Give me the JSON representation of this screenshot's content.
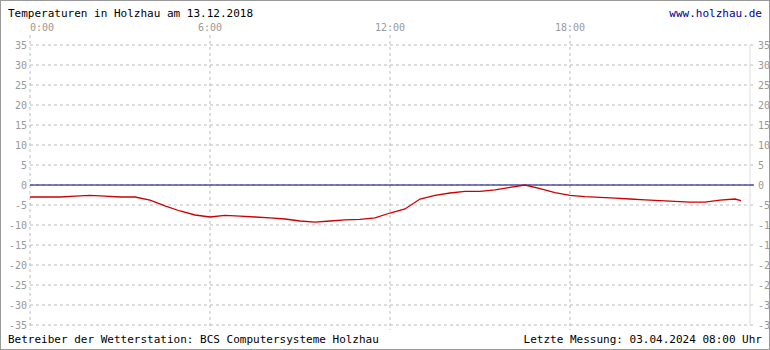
{
  "chart_data": {
    "type": "line",
    "title": "Temperaturen in Holzhau am 13.12.2018",
    "source_link": "www.holzhau.de",
    "footer_left": "Betreiber der Wetterstation: BCS Computersysteme Holzhau",
    "footer_right": "Letzte Messung: 03.04.2024 08:00 Uhr",
    "x": [
      0,
      0.5,
      1,
      1.5,
      2,
      2.5,
      3,
      3.5,
      4,
      4.5,
      5,
      5.5,
      6,
      6.5,
      7,
      7.5,
      8,
      8.5,
      9,
      9.5,
      10,
      10.5,
      11,
      11.5,
      12,
      12.5,
      13,
      13.5,
      14,
      14.5,
      15,
      15.5,
      16,
      16.5,
      17,
      17.5,
      18,
      18.5,
      19,
      19.5,
      20,
      20.5,
      21,
      21.5,
      22,
      22.5,
      23,
      23.5,
      23.7
    ],
    "values": [
      -3,
      -3,
      -3,
      -2.8,
      -2.6,
      -2.8,
      -3,
      -3,
      -3.8,
      -5.2,
      -6.5,
      -7.5,
      -8,
      -7.6,
      -7.8,
      -8,
      -8.2,
      -8.5,
      -9,
      -9.3,
      -9,
      -8.7,
      -8.6,
      -8.2,
      -7,
      -6,
      -3.5,
      -2.6,
      -2,
      -1.6,
      -1.6,
      -1.2,
      -0.6,
      0,
      -0.9,
      -1.9,
      -2.6,
      -2.9,
      -3.1,
      -3.3,
      -3.5,
      -3.7,
      -3.9,
      -4.1,
      -4.3,
      -4.3,
      -3.8,
      -3.5,
      -3.9
    ],
    "color": "#cc0000",
    "xlim": [
      0,
      24
    ],
    "xticks": [
      {
        "value": 0,
        "label": "0:00"
      },
      {
        "value": 6,
        "label": "6:00"
      },
      {
        "value": 12,
        "label": "12:00"
      },
      {
        "value": 18,
        "label": "18:00"
      }
    ],
    "ylim": [
      -35,
      35
    ],
    "yticks": [
      -35,
      -30,
      -25,
      -20,
      -15,
      -10,
      -5,
      0,
      5,
      10,
      15,
      20,
      25,
      30,
      35
    ],
    "grid": true
  }
}
